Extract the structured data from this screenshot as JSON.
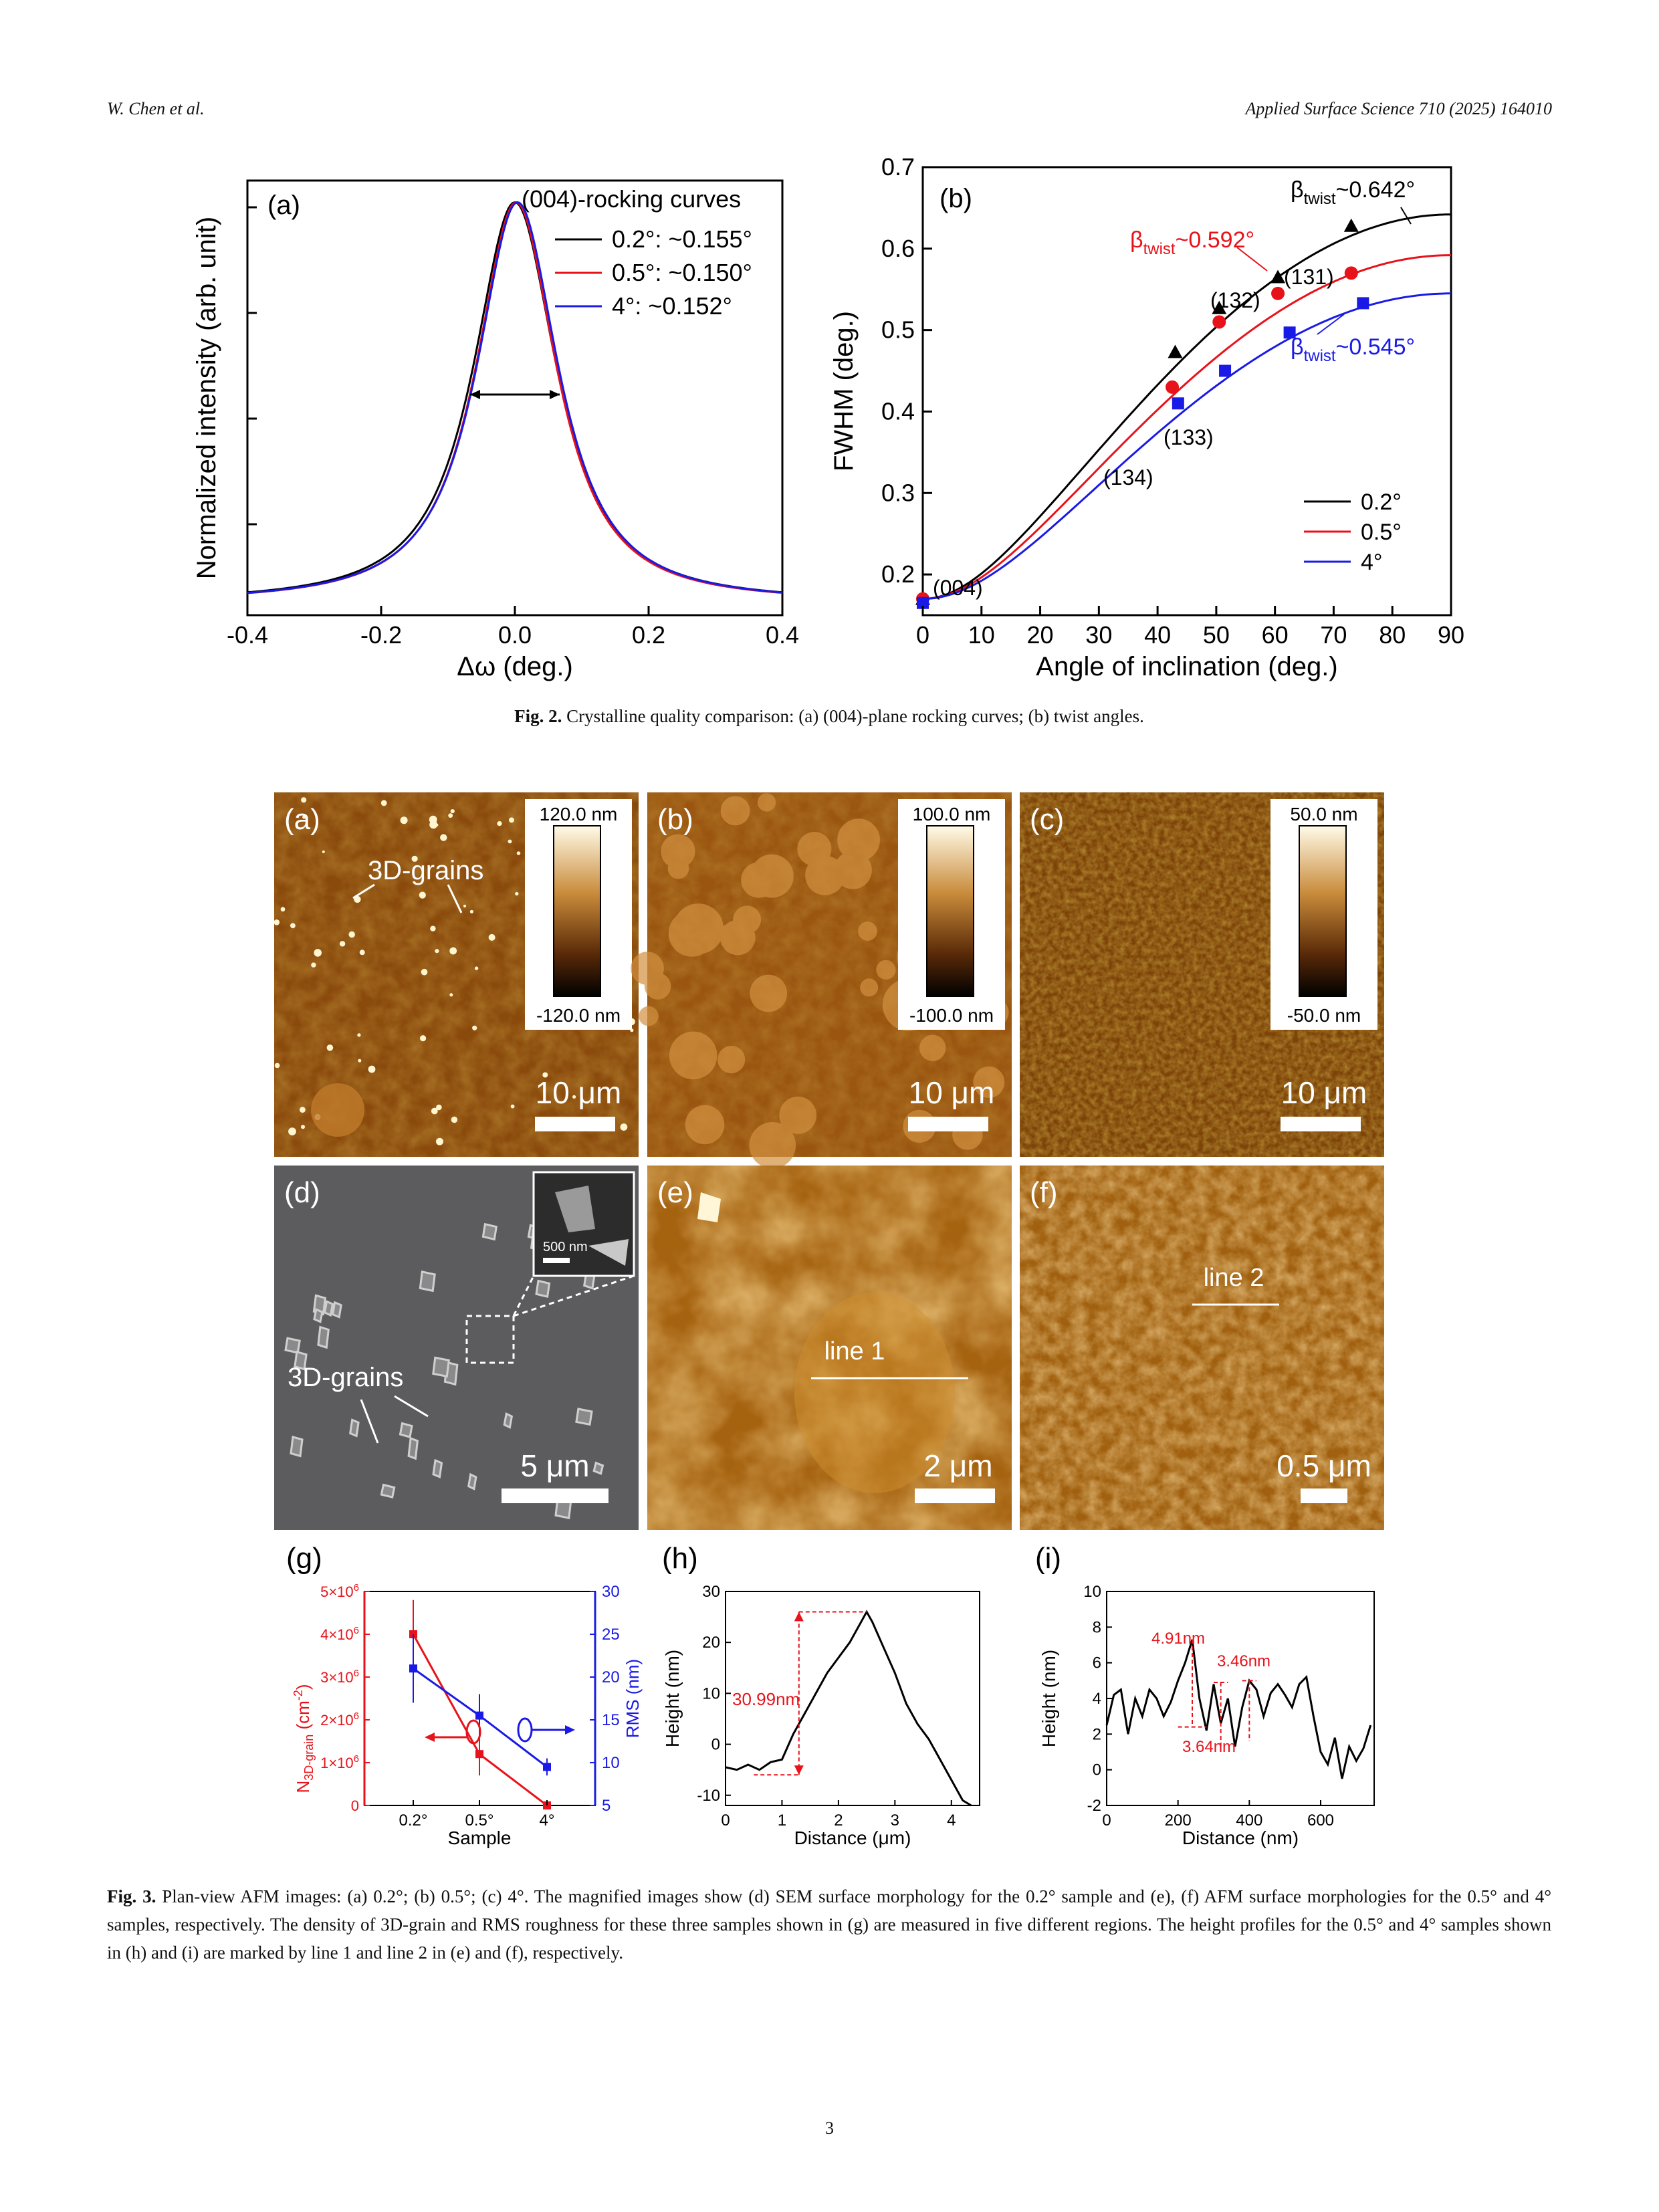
{
  "header": {
    "left": "W. Chen et al.",
    "right": "Applied Surface Science 710 (2025) 164010"
  },
  "fig2": {
    "caption_label": "Fig. 2.",
    "caption_text": "Crystalline quality comparison: (a) (004)-plane rocking curves; (b) twist angles.",
    "panel_a": {
      "label": "(a)",
      "title": "(004)-rocking curves",
      "xlabel": "Δω (deg.)",
      "ylabel": "Normalized intensity (arb. unit)",
      "legend": [
        "0.2°: ~0.155°",
        "0.5°: ~0.150°",
        "4°: ~0.152°"
      ]
    },
    "panel_b": {
      "label": "(b)",
      "xlabel": "Angle of inclination (deg.)",
      "ylabel": "FWHM (deg.)",
      "legend": [
        "0.2°",
        "0.5°",
        "4°"
      ],
      "annotations": {
        "beta_02": "~0.642°",
        "beta_05": "~0.592°",
        "beta_4": "~0.545°",
        "beta": "β",
        "beta_sub": "twist",
        "p004": "(004)",
        "p134": "(134)",
        "p133": "(133)",
        "p132": "(132)",
        "p131": "(131)"
      }
    }
  },
  "fig3": {
    "caption_label": "Fig. 3.",
    "caption_text": "Plan-view AFM images: (a) 0.2°; (b) 0.5°; (c) 4°. The magnified images show (d) SEM surface morphology for the 0.2° sample and (e), (f) AFM surface morphologies for the 0.5° and 4° samples, respectively. The density of 3D-grain and RMS roughness for these three samples shown in (g) are measured in five different regions. The height profiles for the 0.5° and 4° samples shown in (h) and (i) are marked by line 1 and line 2 in (e) and (f), respectively.",
    "panels": {
      "a": {
        "label": "(a)",
        "scale_top": "120.0 nm",
        "scale_bottom": "-120.0 nm",
        "scalebar": "10 μm",
        "annotation": "3D-grains"
      },
      "b": {
        "label": "(b)",
        "scale_top": "100.0 nm",
        "scale_bottom": "-100.0 nm",
        "scalebar": "10 μm"
      },
      "c": {
        "label": "(c)",
        "scale_top": "50.0 nm",
        "scale_bottom": "-50.0 nm",
        "scalebar": "10 μm"
      },
      "d": {
        "label": "(d)",
        "scalebar": "5 μm",
        "inset_scalebar": "500 nm",
        "annotation": "3D-grains"
      },
      "e": {
        "label": "(e)",
        "scalebar": "2 μm",
        "line": "line 1"
      },
      "f": {
        "label": "(f)",
        "scalebar": "0.5 μm",
        "line": "line 2"
      }
    },
    "panel_g": {
      "label": "(g)",
      "xlabel": "Sample",
      "ylabel_left": "N",
      "ylabel_left_sub": "3D-grain",
      "ylabel_left_unit": "(cm",
      "ylabel_left_exp": "-2",
      "ylabel_right": "RMS (nm)",
      "left_ticks_base": "×10",
      "left_ticks": [
        "0",
        "1",
        "2",
        "3",
        "4",
        "5"
      ],
      "left_tick_exp": "6",
      "right_ticks": [
        "5",
        "10",
        "15",
        "20",
        "25",
        "30"
      ],
      "x_ticks": [
        "0.2°",
        "0.5°",
        "4°"
      ]
    },
    "panel_h": {
      "label": "(h)",
      "xlabel": "Distance (μm)",
      "ylabel": "Height (nm)",
      "annotation": "30.99nm"
    },
    "panel_i": {
      "label": "(i)",
      "xlabel": "Distance (nm)",
      "ylabel": "Height (nm)",
      "annotations": [
        "4.91nm",
        "3.46nm",
        "3.64nm"
      ]
    }
  },
  "page_number": "3",
  "chart_data": [
    {
      "type": "line",
      "title": "(004)-rocking curves",
      "xlabel": "Δω (deg.)",
      "ylabel": "Normalized intensity (arb. unit)",
      "xlim": [
        -0.4,
        0.4
      ],
      "x_ticks": [
        -0.4,
        -0.2,
        0.0,
        0.2,
        0.4
      ],
      "series": [
        {
          "name": "0.2°: ~0.155°",
          "color": "#000000",
          "fwhm": 0.155
        },
        {
          "name": "0.5°: ~0.150°",
          "color": "#e8121a",
          "fwhm": 0.15
        },
        {
          "name": "4°: ~0.152°",
          "color": "#1a1ae6",
          "fwhm": 0.152
        }
      ]
    },
    {
      "type": "scatter",
      "xlabel": "Angle of inclination (deg.)",
      "ylabel": "FWHM (deg.)",
      "xlim": [
        0,
        90
      ],
      "ylim": [
        0.15,
        0.7
      ],
      "x_ticks": [
        0,
        10,
        20,
        30,
        40,
        50,
        60,
        70,
        80,
        90
      ],
      "y_ticks": [
        0.2,
        0.3,
        0.4,
        0.5,
        0.6,
        0.7
      ],
      "series": [
        {
          "name": "0.2°",
          "color": "#000000",
          "marker": "triangle",
          "x": [
            0,
            43,
            50.5,
            60.5,
            73
          ],
          "y": [
            0.17,
            0.473,
            0.527,
            0.565,
            0.628
          ],
          "fit_twist": 0.642
        },
        {
          "name": "0.5°",
          "color": "#e8121a",
          "marker": "circle",
          "x": [
            0,
            42.5,
            50.5,
            60.5,
            73
          ],
          "y": [
            0.17,
            0.43,
            0.51,
            0.545,
            0.57
          ],
          "fit_twist": 0.592
        },
        {
          "name": "4°",
          "color": "#1a1ae6",
          "marker": "square",
          "x": [
            0,
            43.5,
            51.5,
            62.5,
            75
          ],
          "y": [
            0.165,
            0.41,
            0.45,
            0.497,
            0.533
          ],
          "fit_twist": 0.545
        }
      ]
    },
    {
      "type": "line",
      "xlabel": "Sample",
      "categories": [
        "0.2°",
        "0.5°",
        "4°"
      ],
      "series": [
        {
          "name": "N3D-grain",
          "color": "#e8121a",
          "values": [
            4000000.0,
            1200000.0,
            0.0
          ],
          "errors": [
            800000.0,
            500000.0,
            0.0
          ]
        },
        {
          "name": "RMS (nm)",
          "color": "#1a1ae6",
          "values": [
            21,
            15.5,
            9.5
          ],
          "errors": [
            4,
            2.5,
            1
          ]
        }
      ]
    },
    {
      "type": "line",
      "xlabel": "Distance (μm)",
      "ylabel": "Height (nm)",
      "xlim": [
        0,
        4.5
      ],
      "ylim": [
        -12,
        30
      ],
      "x_ticks": [
        0,
        1,
        2,
        3,
        4
      ],
      "y_ticks": [
        -10,
        0,
        10,
        20,
        30
      ],
      "x": [
        0,
        0.2,
        0.4,
        0.6,
        0.8,
        1.0,
        1.2,
        1.4,
        1.6,
        1.8,
        2.0,
        2.2,
        2.4,
        2.5,
        2.6,
        2.8,
        3.0,
        3.2,
        3.4,
        3.6,
        3.8,
        4.0,
        4.2,
        4.35
      ],
      "y": [
        -4.5,
        -5,
        -4,
        -5,
        -3.5,
        -3,
        2,
        6,
        10,
        14,
        17,
        20,
        24,
        26,
        24,
        19,
        14,
        8,
        4,
        1,
        -3,
        -7,
        -11,
        -12
      ]
    },
    {
      "type": "line",
      "xlabel": "Distance (nm)",
      "ylabel": "Height (nm)",
      "xlim": [
        0,
        750
      ],
      "ylim": [
        -2,
        10
      ],
      "x_ticks": [
        0,
        200,
        400,
        600
      ],
      "y_ticks": [
        -2,
        0,
        2,
        4,
        6,
        8,
        10
      ],
      "x": [
        0,
        20,
        40,
        60,
        80,
        100,
        120,
        140,
        160,
        180,
        200,
        220,
        240,
        260,
        280,
        300,
        320,
        340,
        360,
        380,
        400,
        420,
        440,
        460,
        480,
        500,
        520,
        540,
        560,
        580,
        600,
        620,
        640,
        660,
        680,
        700,
        720,
        740
      ],
      "y": [
        2.5,
        4.2,
        4.5,
        2,
        4,
        3,
        4.5,
        4,
        3,
        3.8,
        5,
        6,
        7.3,
        4,
        2.2,
        4.8,
        2.6,
        4,
        1.3,
        3.5,
        5,
        4.5,
        3,
        4.3,
        4.8,
        4.2,
        3.5,
        4.8,
        5.2,
        3,
        1,
        0.3,
        1.8,
        -0.5,
        1.3,
        0.5,
        1.2,
        2.5
      ]
    }
  ]
}
